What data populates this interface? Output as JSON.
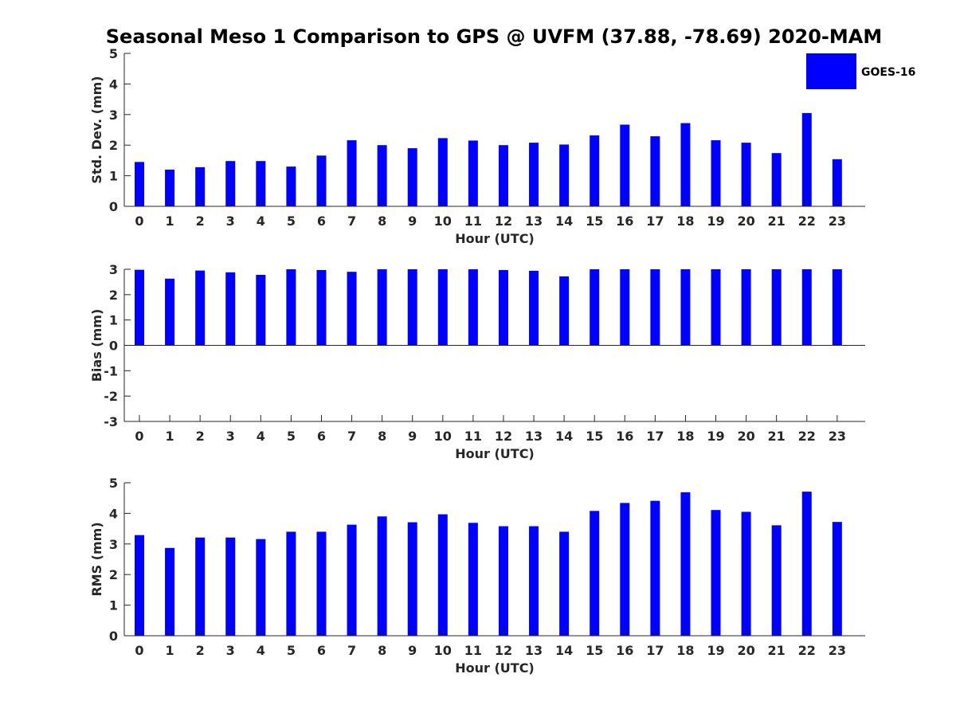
{
  "title": "Seasonal Meso 1 Comparison to GPS @ UVFM (37.88, -78.69) 2020-MAM",
  "legend": {
    "label": "GOES-16",
    "color": "#0000ff"
  },
  "chart_data": [
    {
      "type": "bar",
      "xlabel": "Hour (UTC)",
      "ylabel": "Std. Dev. (mm)",
      "ylim": [
        0,
        5
      ],
      "yticks": [
        0,
        1,
        2,
        3,
        4,
        5
      ],
      "categories": [
        "0",
        "1",
        "2",
        "3",
        "4",
        "5",
        "6",
        "7",
        "8",
        "9",
        "10",
        "11",
        "12",
        "13",
        "14",
        "15",
        "16",
        "17",
        "18",
        "19",
        "20",
        "21",
        "22",
        "23"
      ],
      "series": [
        {
          "name": "GOES-16",
          "color": "#0000ff",
          "values": [
            1.45,
            1.2,
            1.28,
            1.48,
            1.48,
            1.3,
            1.66,
            2.16,
            2.0,
            1.9,
            2.23,
            2.15,
            2.0,
            2.08,
            2.02,
            2.32,
            2.67,
            2.29,
            2.72,
            2.16,
            2.08,
            1.74,
            3.05,
            1.54
          ]
        }
      ]
    },
    {
      "type": "bar",
      "xlabel": "Hour (UTC)",
      "ylabel": "Bias (mm)",
      "ylim": [
        -3,
        3
      ],
      "yticks": [
        -3,
        -2,
        -1,
        0,
        1,
        2,
        3
      ],
      "categories": [
        "0",
        "1",
        "2",
        "3",
        "4",
        "5",
        "6",
        "7",
        "8",
        "9",
        "10",
        "11",
        "12",
        "13",
        "14",
        "15",
        "16",
        "17",
        "18",
        "19",
        "20",
        "21",
        "22",
        "23"
      ],
      "series": [
        {
          "name": "GOES-16",
          "color": "#0000ff",
          "values": [
            2.98,
            2.63,
            2.95,
            2.88,
            2.78,
            3.0,
            2.97,
            2.9,
            3.0,
            3.0,
            3.0,
            3.0,
            2.97,
            2.94,
            2.72,
            3.0,
            3.0,
            3.0,
            3.0,
            3.0,
            3.0,
            3.0,
            3.0,
            3.0
          ]
        }
      ]
    },
    {
      "type": "bar",
      "xlabel": "Hour (UTC)",
      "ylabel": "RMS (mm)",
      "ylim": [
        0,
        5
      ],
      "yticks": [
        0,
        1,
        2,
        3,
        4,
        5
      ],
      "categories": [
        "0",
        "1",
        "2",
        "3",
        "4",
        "5",
        "6",
        "7",
        "8",
        "9",
        "10",
        "11",
        "12",
        "13",
        "14",
        "15",
        "16",
        "17",
        "18",
        "19",
        "20",
        "21",
        "22",
        "23"
      ],
      "series": [
        {
          "name": "GOES-16",
          "color": "#0000ff",
          "values": [
            3.29,
            2.87,
            3.21,
            3.21,
            3.16,
            3.4,
            3.4,
            3.63,
            3.9,
            3.71,
            3.97,
            3.69,
            3.58,
            3.58,
            3.4,
            4.08,
            4.34,
            4.41,
            4.69,
            4.11,
            4.05,
            3.61,
            4.71,
            3.72
          ]
        }
      ]
    }
  ]
}
